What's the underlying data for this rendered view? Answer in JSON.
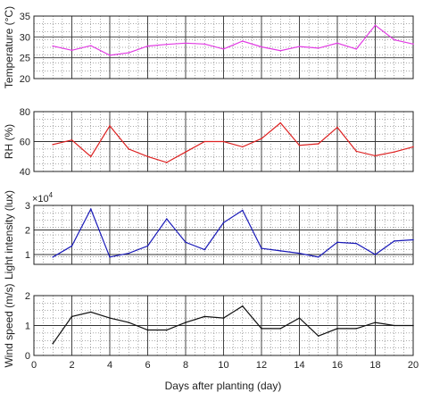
{
  "figure": {
    "xlabel": "Days after planting (day)"
  },
  "chart_data": [
    {
      "type": "line",
      "ylabel": "Temperature (°C)",
      "color": "#e23be3",
      "xlim": [
        0,
        20
      ],
      "ylim": [
        20,
        35
      ],
      "yticks": [
        20,
        25,
        30,
        35
      ],
      "xticks": [
        0,
        2,
        4,
        6,
        8,
        10,
        12,
        14,
        16,
        18,
        20
      ],
      "grid": true,
      "x": [
        1,
        2,
        3,
        4,
        5,
        6,
        7,
        8,
        9,
        10,
        11,
        12,
        13,
        14,
        15,
        16,
        17,
        18,
        19,
        20
      ],
      "y": [
        27.8,
        26.8,
        27.9,
        25.6,
        26.2,
        27.8,
        28.2,
        28.5,
        28.3,
        27.1,
        29.0,
        27.6,
        26.7,
        27.7,
        27.3,
        28.5,
        27.1,
        32.8,
        29.3,
        28.3
      ]
    },
    {
      "type": "line",
      "ylabel": "RH (%)",
      "color": "#dd2222",
      "xlim": [
        0,
        20
      ],
      "ylim": [
        40,
        80
      ],
      "yticks": [
        40,
        60,
        80
      ],
      "xticks": [
        0,
        2,
        4,
        6,
        8,
        10,
        12,
        14,
        16,
        18,
        20
      ],
      "grid": true,
      "x": [
        1,
        2,
        3,
        4,
        5,
        6,
        7,
        8,
        9,
        10,
        11,
        12,
        13,
        14,
        15,
        16,
        17,
        18,
        19,
        20
      ],
      "y": [
        58,
        61,
        50,
        70.5,
        55,
        50,
        46,
        53,
        60,
        60,
        56.5,
        62,
        72.5,
        57.5,
        58.5,
        69.5,
        53.5,
        50.5,
        53,
        56.5
      ]
    },
    {
      "type": "line",
      "ylabel": "Light intensity (lux)",
      "multiplier": "×10",
      "multiplier_exp": "4",
      "color": "#1a1ab8",
      "xlim": [
        0,
        20
      ],
      "ylim": [
        0.6,
        3.0
      ],
      "yticks": [
        1,
        2,
        3
      ],
      "xticks": [
        0,
        2,
        4,
        6,
        8,
        10,
        12,
        14,
        16,
        18,
        20
      ],
      "grid": true,
      "x": [
        1,
        2,
        3,
        4,
        5,
        6,
        7,
        8,
        9,
        10,
        11,
        12,
        13,
        14,
        15,
        16,
        17,
        18,
        19,
        20
      ],
      "y": [
        0.9,
        1.35,
        2.85,
        0.9,
        1.05,
        1.35,
        2.45,
        1.5,
        1.2,
        2.3,
        2.8,
        1.25,
        1.15,
        1.05,
        0.9,
        1.5,
        1.45,
        1.0,
        1.55,
        1.6
      ]
    },
    {
      "type": "line",
      "ylabel": "Wind speed (m/s)",
      "color": "#111111",
      "xlim": [
        0,
        20
      ],
      "ylim": [
        0,
        2
      ],
      "yticks": [
        0,
        1,
        2
      ],
      "xticks": [
        0,
        2,
        4,
        6,
        8,
        10,
        12,
        14,
        16,
        18,
        20
      ],
      "xticklabels": [
        "0",
        "2",
        "4",
        "6",
        "8",
        "10",
        "12",
        "14",
        "16",
        "18",
        "20"
      ],
      "grid": true,
      "x": [
        1,
        2,
        3,
        4,
        5,
        6,
        7,
        8,
        9,
        10,
        11,
        12,
        13,
        14,
        15,
        16,
        17,
        18,
        19,
        20
      ],
      "y": [
        0.4,
        1.3,
        1.45,
        1.25,
        1.1,
        0.85,
        0.85,
        1.1,
        1.3,
        1.25,
        1.65,
        0.9,
        0.9,
        1.25,
        0.65,
        0.9,
        0.9,
        1.1,
        1.0,
        1.0
      ]
    }
  ]
}
